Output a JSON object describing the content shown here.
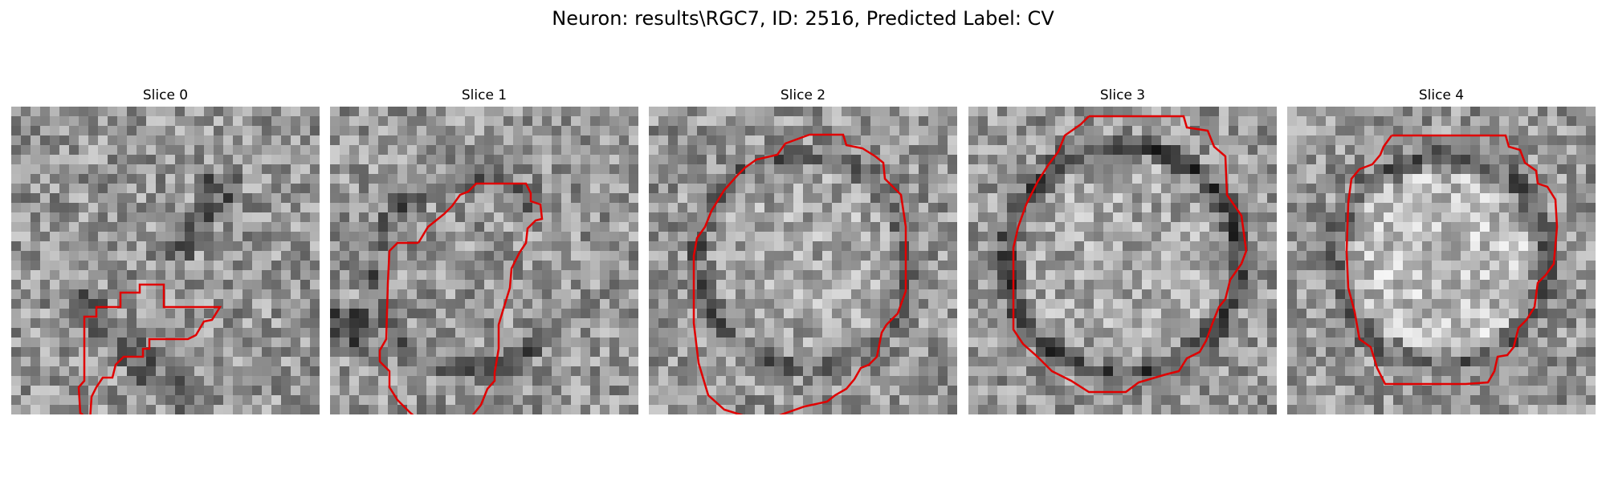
{
  "figure": {
    "title": "Neuron: results\\RGC7, ID: 2516, Predicted Label: CV"
  },
  "panels": [
    {
      "title": "Slice 0",
      "contour_color": "#e00000",
      "variant": "blob-diagonal"
    },
    {
      "title": "Slice 1",
      "contour_color": "#e00000",
      "variant": "crescent"
    },
    {
      "title": "Slice 2",
      "contour_color": "#e00000",
      "variant": "ring"
    },
    {
      "title": "Slice 3",
      "contour_color": "#e00000",
      "variant": "ring-dark"
    },
    {
      "title": "Slice 4",
      "contour_color": "#e00000",
      "variant": "ring-bright-core"
    }
  ]
}
